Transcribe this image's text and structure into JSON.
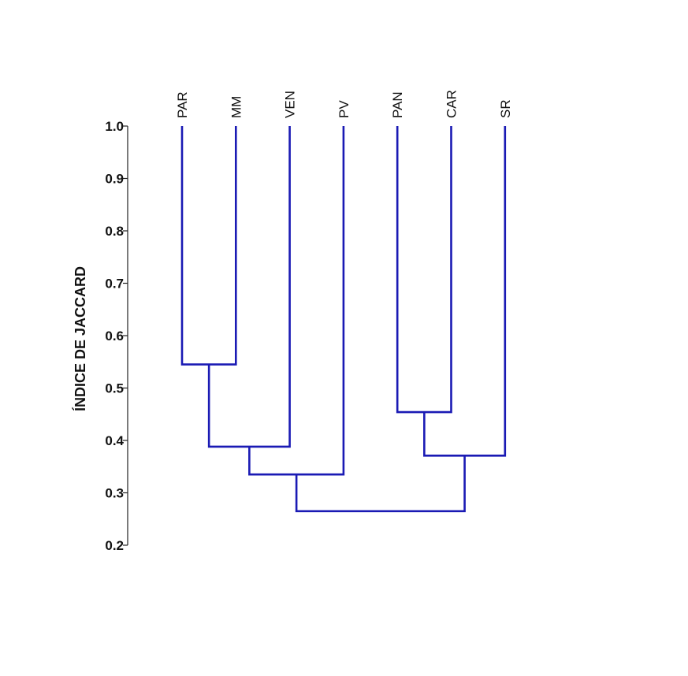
{
  "chart_data": {
    "type": "dendrogram",
    "ylabel": "ÍNDICE DE JACCARD",
    "ylim": [
      0.2,
      1.0
    ],
    "yticks": [
      "0.2",
      "0.3",
      "0.4",
      "0.5",
      "0.6",
      "0.7",
      "0.8",
      "0.9",
      "1.0"
    ],
    "leaves": [
      "PAR",
      "MM",
      "VEN",
      "PV",
      "PAN",
      "CAR",
      "SR"
    ],
    "merges": [
      {
        "id": "m1",
        "left": "PAR",
        "right": "MM",
        "height": 0.545
      },
      {
        "id": "m2",
        "left": "m1",
        "right": "VEN",
        "height": 0.388
      },
      {
        "id": "m3",
        "left": "m2",
        "right": "PV",
        "height": 0.335
      },
      {
        "id": "m4",
        "left": "PAN",
        "right": "CAR",
        "height": 0.454
      },
      {
        "id": "m5",
        "left": "m4",
        "right": "SR",
        "height": 0.371
      },
      {
        "id": "m6",
        "left": "m3",
        "right": "m5",
        "height": 0.265
      }
    ],
    "line_color": "#1a1ab4",
    "grid": false
  }
}
